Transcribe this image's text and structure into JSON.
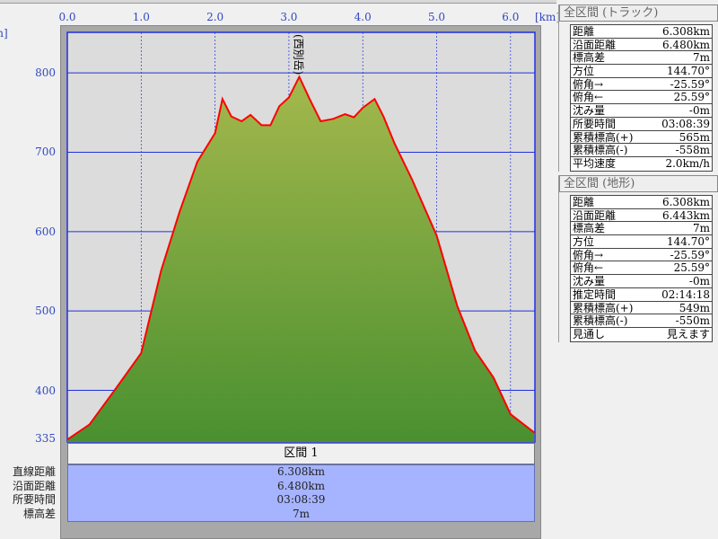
{
  "chart_data": {
    "type": "area",
    "xlabel": "[km]",
    "ylabel": "[m]",
    "xlim": [
      0,
      6.33
    ],
    "ylim": [
      335,
      851
    ],
    "x_ticks": [
      "0.0",
      "1.0",
      "2.0",
      "3.0",
      "4.0",
      "5.0",
      "6.0"
    ],
    "y_ticks": [
      "800",
      "700",
      "600",
      "500",
      "400",
      "335"
    ],
    "grid": true,
    "annotation": {
      "label": "(西別岳)",
      "x": 3.14,
      "y": 795
    },
    "line_color": "#ff0000",
    "fill_color": "#5a9a38",
    "points": [
      [
        0,
        338
      ],
      [
        0.3,
        357
      ],
      [
        0.67,
        404
      ],
      [
        1.0,
        447
      ],
      [
        1.27,
        551
      ],
      [
        1.52,
        625
      ],
      [
        1.76,
        688
      ],
      [
        2.0,
        724
      ],
      [
        2.1,
        767
      ],
      [
        2.22,
        745
      ],
      [
        2.36,
        739
      ],
      [
        2.48,
        747
      ],
      [
        2.63,
        734
      ],
      [
        2.75,
        734
      ],
      [
        2.87,
        758
      ],
      [
        3.0,
        769
      ],
      [
        3.14,
        795
      ],
      [
        3.28,
        767
      ],
      [
        3.43,
        739
      ],
      [
        3.6,
        742
      ],
      [
        3.76,
        748
      ],
      [
        3.88,
        744
      ],
      [
        4.0,
        756
      ],
      [
        4.16,
        767
      ],
      [
        4.28,
        745
      ],
      [
        4.43,
        711
      ],
      [
        4.67,
        665
      ],
      [
        5.0,
        595
      ],
      [
        5.28,
        506
      ],
      [
        5.52,
        450
      ],
      [
        5.77,
        416
      ],
      [
        6.0,
        370
      ],
      [
        6.32,
        347
      ]
    ]
  },
  "segment": {
    "header": "区間 1",
    "labels": [
      "直線距離",
      "沿面距離",
      "所要時間",
      "標高差"
    ],
    "values": [
      "6.308km",
      "6.480km",
      "03:08:39",
      "7m"
    ]
  },
  "track_panel": {
    "title": "全区間 (トラック)",
    "rows": [
      [
        "距離",
        "6.308km"
      ],
      [
        "沿面距離",
        "6.480km"
      ],
      [
        "標高差",
        "7m"
      ],
      [
        "方位",
        "144.70°"
      ],
      [
        "俯角→",
        "-25.59°"
      ],
      [
        "俯角←",
        "25.59°"
      ],
      [
        "沈み量",
        "-0m"
      ],
      [
        "所要時間",
        "03:08:39"
      ],
      [
        "累積標高(+)",
        "565m"
      ],
      [
        "累積標高(-)",
        "-558m"
      ],
      [
        "平均速度",
        "2.0km/h"
      ]
    ]
  },
  "terrain_panel": {
    "title": "全区間 (地形)",
    "rows": [
      [
        "距離",
        "6.308km"
      ],
      [
        "沿面距離",
        "6.443km"
      ],
      [
        "標高差",
        "7m"
      ],
      [
        "方位",
        "144.70°"
      ],
      [
        "俯角→",
        "-25.59°"
      ],
      [
        "俯角←",
        "25.59°"
      ],
      [
        "沈み量",
        "-0m"
      ],
      [
        "推定時間",
        "02:14:18"
      ],
      [
        "累積標高(+)",
        "549m"
      ],
      [
        "累積標高(-)",
        "-550m"
      ],
      [
        "見通し",
        "見えます"
      ]
    ]
  }
}
